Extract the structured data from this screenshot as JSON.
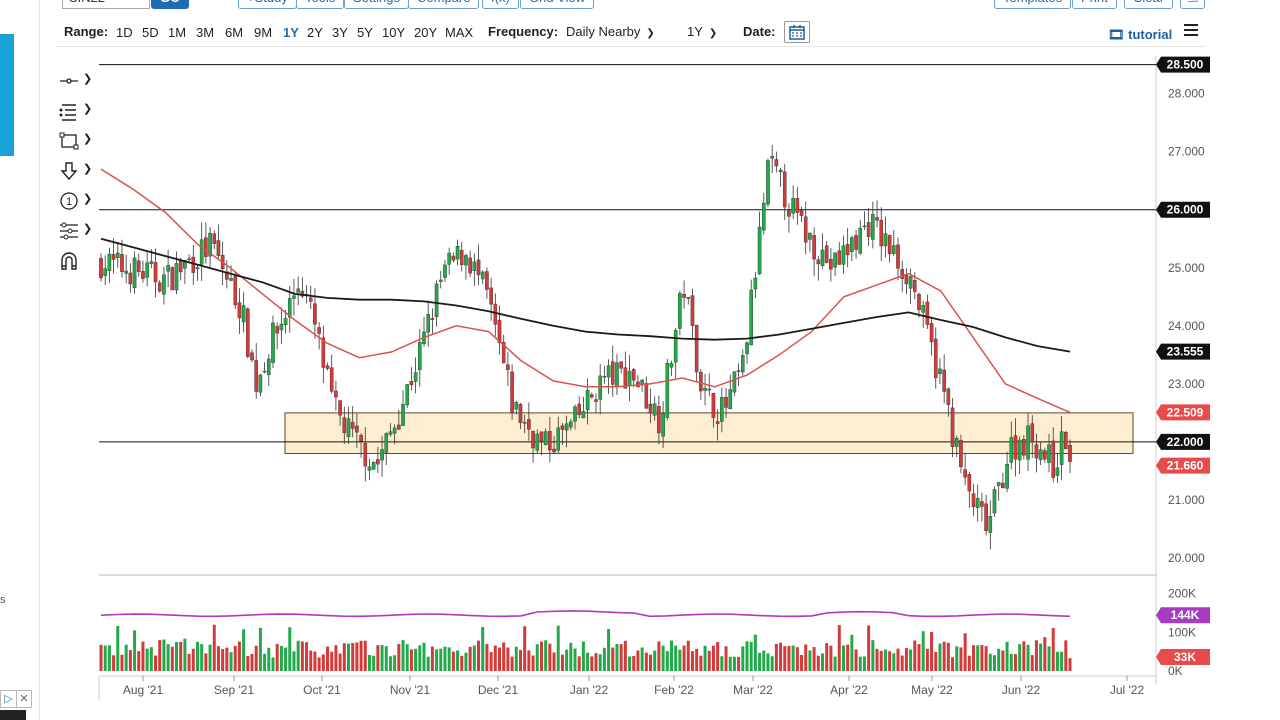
{
  "toolbar": {
    "symbol_value": "SIN22",
    "go_label": "GO",
    "study_label": "+Study",
    "tools_label": "Tools",
    "settings_label": "Settings",
    "compare_label": "Compare",
    "fx_label": "f(x)",
    "grid_view_label": "Grid View",
    "templates_label": "Templates",
    "print_label": "Print",
    "clear_label": "Clear"
  },
  "range_bar": {
    "range_label": "Range:",
    "ranges": [
      "1D",
      "5D",
      "1M",
      "3M",
      "6M",
      "9M",
      "1Y",
      "2Y",
      "3Y",
      "5Y",
      "10Y",
      "20Y",
      "MAX"
    ],
    "active_range": "1Y",
    "frequency_label": "Frequency:",
    "frequency_value": "Daily Nearby",
    "period_value": "1Y",
    "date_label": "Date:",
    "tutorial_label": "tutorial"
  },
  "left_strip": {
    "letter": "s"
  },
  "tools": [
    "crosshair-icon",
    "lines-icon",
    "rectangle-icon",
    "arrow-icon",
    "annotation-icon",
    "fibonacci-icon",
    "magnet-icon"
  ],
  "colors": {
    "up": "#22a94a",
    "down": "#d33a3a",
    "ma_fast": "#d9534f",
    "ma_slow": "#1a1a1a",
    "volume_avg": "#b23ab8",
    "zone_fill": "#fdebc9",
    "zone_stroke": "#5a4a2a",
    "badge_dark": "#111111",
    "badge_red": "#e84b4b",
    "badge_purple": "#a63cc0"
  },
  "chart_data": [
    {
      "type": "candlestick",
      "instrument": "SIN22",
      "title": "",
      "ylim": [
        20.0,
        28.5
      ],
      "y_ticks": [
        "28.000",
        "27.000",
        "26.000",
        "25.000",
        "24.000",
        "23.000",
        "22.000",
        "21.000",
        "20.000"
      ],
      "x_ticks": [
        "Aug '21",
        "Sep '21",
        "Oct '21",
        "Nov '21",
        "Dec '21",
        "Jan '22",
        "Feb '22",
        "Mar '22",
        "Apr '22",
        "May '22",
        "Jun '22",
        "Jul '22"
      ],
      "horizontal_lines": [
        {
          "label": "28.500",
          "value": 28.5
        },
        {
          "label": "26.000",
          "value": 26.0
        },
        {
          "label": "22.000",
          "value": 22.0
        }
      ],
      "support_zone": {
        "from": 21.8,
        "to": 22.5,
        "start": "Sep '21",
        "end": "Jun '22"
      },
      "last_price": {
        "label": "21.660",
        "value": 21.66
      },
      "moving_averages": [
        {
          "label": "22.509",
          "value": 22.509,
          "points": [
            26.7,
            26.35,
            25.95,
            25.4,
            25.0,
            24.55,
            24.1,
            23.7,
            23.45,
            23.55,
            23.8,
            24.0,
            23.9,
            23.4,
            23.05,
            22.95,
            22.95,
            23.0,
            23.1,
            22.95,
            23.15,
            23.5,
            23.9,
            24.5,
            24.7,
            24.9,
            24.6,
            23.8,
            23.0,
            22.75,
            22.509
          ]
        },
        {
          "label": "23.555",
          "value": 23.555,
          "points": [
            25.5,
            25.35,
            25.2,
            25.05,
            24.9,
            24.75,
            24.55,
            24.48,
            24.45,
            24.45,
            24.42,
            24.35,
            24.25,
            24.12,
            24.0,
            23.9,
            23.85,
            23.82,
            23.78,
            23.76,
            23.78,
            23.85,
            23.95,
            24.05,
            24.15,
            24.23,
            24.1,
            23.98,
            23.8,
            23.65,
            23.555
          ]
        }
      ],
      "price_points": [
        25.1,
        24.8,
        25.4,
        24.3,
        23.0,
        23.7,
        24.2,
        24.8,
        24.0,
        22.6,
        22.0,
        21.6,
        22.5,
        23.6,
        24.9,
        25.3,
        24.5,
        22.6,
        21.9,
        22.3,
        23.1,
        23.2,
        22.4,
        24.7,
        22.8,
        22.5,
        23.3,
        26.8,
        25.7,
        25.0,
        25.8,
        24.8,
        22.9,
        21.2,
        20.5,
        21.9,
        22.1,
        21.6,
        22.4,
        21.2,
        21.66
      ],
      "price_dates": [
        "Jul '21",
        "Aug '21",
        "Aug '21",
        "Sep '21",
        "Sep '21",
        "Sep '21",
        "Sep '21",
        "Sep '21",
        "Sep '21",
        "Oct '21",
        "Oct '21",
        "Oct '21",
        "Oct '21",
        "Nov '21",
        "Nov '21",
        "Nov '21",
        "Nov '21",
        "Dec '21",
        "Dec '21",
        "Dec '21",
        "Jan '22",
        "Jan '22",
        "Jan '22",
        "Feb '22",
        "Feb '22",
        "Feb '22",
        "Feb '22",
        "Mar '22",
        "Mar '22",
        "Mar '22",
        "Apr '22",
        "Apr '22",
        "May '22",
        "May '22",
        "May '22",
        "May '22",
        "Jun '22",
        "Jun '22",
        "Jun '22",
        "Jun '22",
        "Jun '22"
      ]
    },
    {
      "type": "bar",
      "name": "volume",
      "ylim": [
        0,
        200
      ],
      "y_ticks": [
        "200K",
        "100K",
        "0K"
      ],
      "volume_average_label": "144K",
      "volume_average": 144,
      "last_volume_label": "33K",
      "last_volume": 33
    }
  ]
}
